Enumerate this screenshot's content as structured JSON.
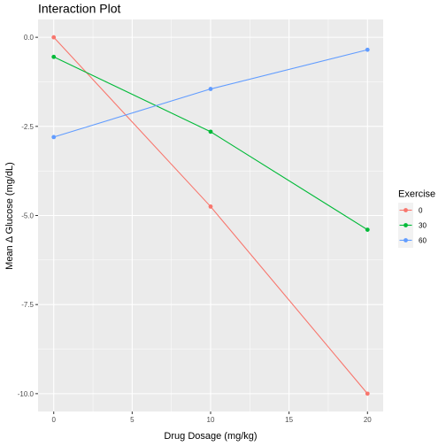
{
  "chart_data": {
    "type": "line",
    "title": "Interaction Plot",
    "xlabel": "Drug Dosage (mg/kg)",
    "ylabel": "Mean Δ Glucose (mg/dL)",
    "x": [
      0,
      10,
      20
    ],
    "xlim": [
      -1,
      21
    ],
    "ylim": [
      -10.5,
      0.5
    ],
    "xticks": [
      0,
      5,
      10,
      15,
      20
    ],
    "xtick_labels": [
      "0",
      "5",
      "10",
      "15",
      "20"
    ],
    "yticks": [
      0,
      -2.5,
      -5,
      -7.5,
      -10
    ],
    "ytick_labels": [
      "0.0",
      "-2.5",
      "-5.0",
      "-7.5",
      "-10.0"
    ],
    "grid": true,
    "legend": {
      "title": "Exercise",
      "position": "right"
    },
    "series": [
      {
        "name": "0",
        "color": "#F8766D",
        "values": [
          0.0,
          -4.75,
          -10.0
        ]
      },
      {
        "name": "30",
        "color": "#00BA38",
        "values": [
          -0.55,
          -2.65,
          -5.4
        ]
      },
      {
        "name": "60",
        "color": "#619CFF",
        "values": [
          -2.8,
          -1.45,
          -0.35
        ]
      }
    ]
  }
}
